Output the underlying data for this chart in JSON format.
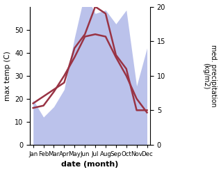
{
  "months": [
    "Jan",
    "Feb",
    "Mar",
    "Apr",
    "May",
    "Jun",
    "Jul",
    "Aug",
    "Sep",
    "Oct",
    "Nov",
    "Dec"
  ],
  "temp_line": [
    16,
    17,
    23,
    30,
    38,
    47,
    48,
    47,
    38,
    30,
    20,
    14
  ],
  "precip_area": [
    6.5,
    4.0,
    5.5,
    8.0,
    15.5,
    22.0,
    19.0,
    19.5,
    17.5,
    19.5,
    8.5,
    14.0
  ],
  "precip_line": [
    6,
    7,
    8,
    9,
    14,
    16,
    20,
    19,
    13,
    11,
    5,
    5
  ],
  "xlabel": "date (month)",
  "ylabel_left": "max temp (C)",
  "ylabel_right": "med. precipitation\n(kg/m2)",
  "ylim_left": [
    0,
    60
  ],
  "ylim_right": [
    0,
    20
  ],
  "yticks_left": [
    0,
    10,
    20,
    30,
    40,
    50
  ],
  "yticks_right": [
    0,
    5,
    10,
    15,
    20
  ],
  "temp_color": "#993344",
  "area_color": "#b0b8e8",
  "area_alpha": 0.85
}
